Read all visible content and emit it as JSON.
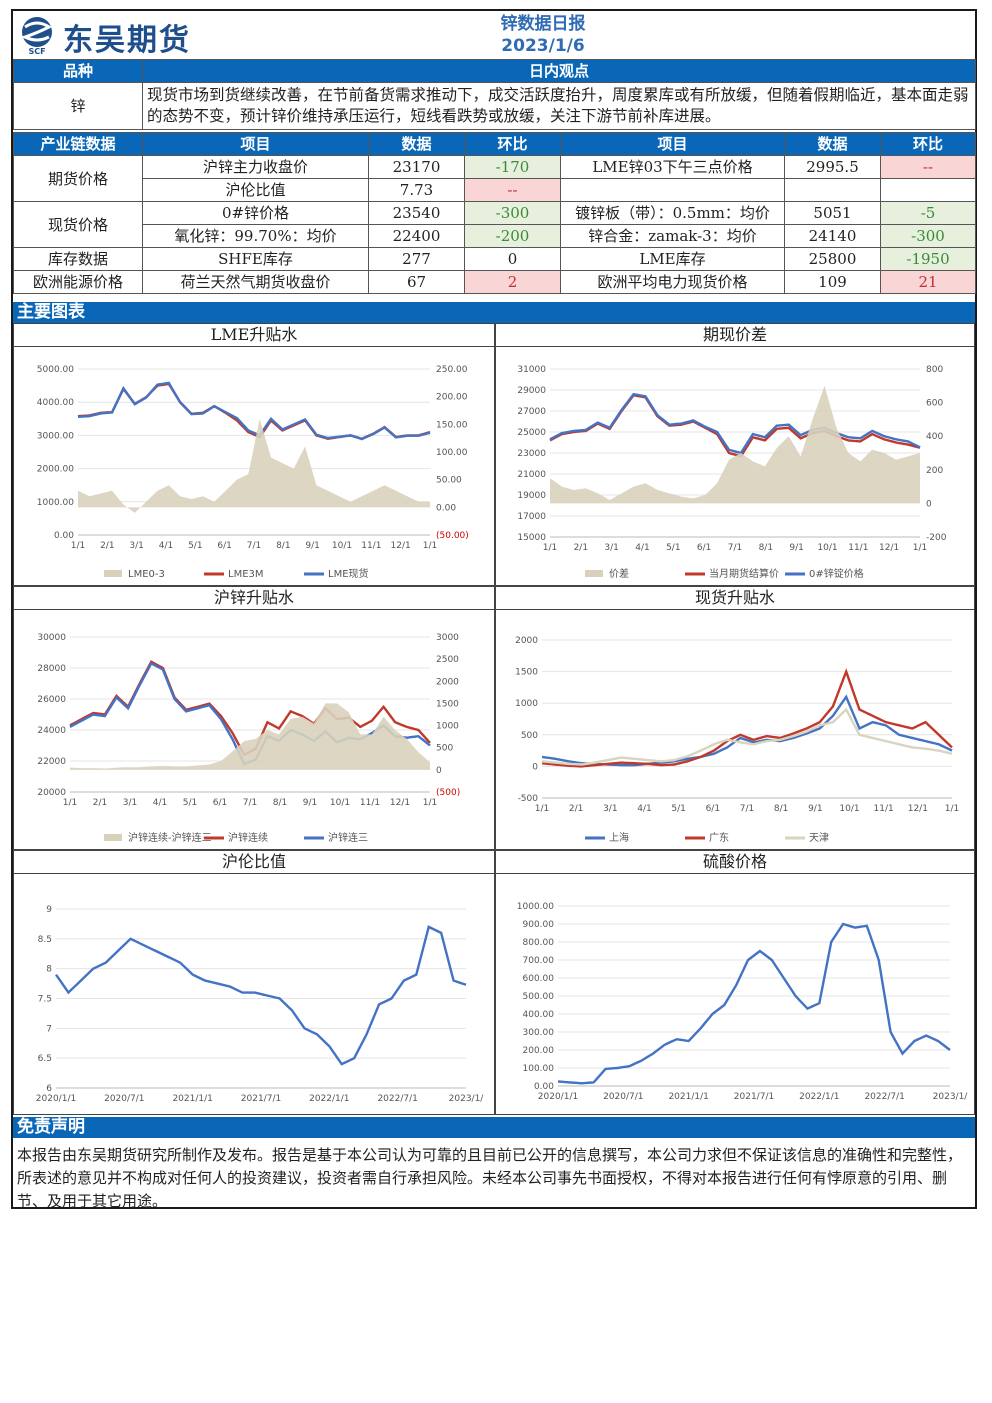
{
  "header": {
    "brand": "东吴期货",
    "logo_text": "SCF",
    "report_title": "锌数据日报",
    "report_date": "2023/1/6"
  },
  "view_table": {
    "col_variety": "品种",
    "col_view": "日内观点",
    "variety": "锌",
    "view": "现货市场到货继续改善，在节前备货需求推动下，成交活跃度抬升，周度累库或有所放缓，但随着假期临近，基本面走弱的态势不变，预计锌价维持承压运行，短线看跌势或放缓，关注下游节前补库进展。"
  },
  "data_table": {
    "headers": [
      "产业链数据",
      "项目",
      "数据",
      "环比",
      "项目",
      "数据",
      "环比"
    ],
    "groups": [
      {
        "label": "期货价格",
        "rows": [
          {
            "item1": "沪锌主力收盘价",
            "val1": "23170",
            "chg1": "-170",
            "c1": "g",
            "item2": "LME锌03下午三点价格",
            "val2": "2995.5",
            "chg2": "--",
            "c2": "r"
          },
          {
            "item1": "沪伦比值",
            "val1": "7.73",
            "chg1": "--",
            "c1": "r",
            "item2": "",
            "val2": "",
            "chg2": "",
            "c2": ""
          }
        ]
      },
      {
        "label": "现货价格",
        "rows": [
          {
            "item1": "0#锌价格",
            "val1": "23540",
            "chg1": "-300",
            "c1": "g",
            "item2": "镀锌板（带）：0.5mm：均价",
            "val2": "5051",
            "chg2": "-5",
            "c2": "g"
          },
          {
            "item1": "氧化锌：99.70%：均价",
            "val1": "22400",
            "chg1": "-200",
            "c1": "g",
            "item2": "锌合金：zamak-3：均价",
            "val2": "24140",
            "chg2": "-300",
            "c2": "g"
          }
        ]
      },
      {
        "label": "库存数据",
        "rows": [
          {
            "item1": "SHFE库存",
            "val1": "277",
            "chg1": "0",
            "c1": "",
            "item2": "LME库存",
            "val2": "25800",
            "chg2": "-1950",
            "c2": "g"
          }
        ]
      },
      {
        "label": "欧洲能源价格",
        "rows": [
          {
            "item1": "荷兰天然气期货收盘价",
            "val1": "67",
            "chg1": "2",
            "c1": "r",
            "item2": "欧洲平均电力现货价格",
            "val2": "109",
            "chg2": "21",
            "c2": "r"
          }
        ]
      }
    ]
  },
  "sections": {
    "charts_title": "主要图表",
    "disclaimer_title": "免责声明",
    "disclaimer_text": "本报告由东吴期货研究所制作及发布。报告是基于本公司认为可靠的且目前已公开的信息撰写，本公司力求但不保证该信息的准确性和完整性，所表述的意见并不构成对任何人的投资建议，投资者需自行承担风险。未经本公司事先书面授权，不得对本报告进行任何有悖原意的引用、删节、及用于其它用途。"
  },
  "colors": {
    "blue": "#4472c4",
    "red": "#c0392b",
    "tan": "#d8d2bd",
    "gray": "#c8c8b4"
  },
  "chart_data": [
    {
      "title": "LME升贴水",
      "type": "line",
      "x_ticks": [
        "1/1",
        "2/1",
        "3/1",
        "4/1",
        "5/1",
        "6/1",
        "7/1",
        "8/1",
        "9/1",
        "10/1",
        "11/1",
        "12/1",
        "1/1"
      ],
      "y_left": {
        "ticks": [
          "5000.00",
          "4000.00",
          "3000.00",
          "2000.00",
          "1000.00",
          "0.00"
        ],
        "range": [
          0,
          5000
        ]
      },
      "y_right": {
        "ticks": [
          "250.00",
          "200.00",
          "150.00",
          "100.00",
          "50.00",
          "0.00",
          "(50.00)"
        ],
        "range": [
          -50,
          250
        ]
      },
      "legend": [
        "LME0-3",
        "LME3M",
        "LME现货"
      ],
      "series": [
        {
          "name": "LME3M",
          "values": [
            3580,
            3600,
            3680,
            3700,
            4400,
            3950,
            4150,
            4500,
            4550,
            4000,
            3650,
            3680,
            3880,
            3680,
            3450,
            3100,
            2950,
            3450,
            3150,
            3300,
            3450,
            3000,
            2900,
            2950,
            3000,
            2900,
            3050,
            3250,
            2950,
            3000,
            3000,
            3100
          ]
        },
        {
          "name": "LME现货",
          "values": [
            3560,
            3580,
            3660,
            3690,
            4420,
            3940,
            4140,
            4530,
            4580,
            3990,
            3640,
            3660,
            3880,
            3700,
            3520,
            3150,
            3000,
            3500,
            3180,
            3330,
            3480,
            3020,
            2920,
            2960,
            3000,
            2890,
            3040,
            3240,
            2940,
            2990,
            2990,
            3080
          ]
        },
        {
          "name": "LME0-3",
          "values": [
            30,
            20,
            25,
            30,
            5,
            -10,
            10,
            30,
            40,
            20,
            15,
            20,
            10,
            30,
            50,
            60,
            160,
            90,
            80,
            70,
            110,
            40,
            30,
            20,
            10,
            20,
            30,
            40,
            30,
            20,
            10,
            10
          ]
        }
      ]
    },
    {
      "title": "期现价差",
      "type": "line",
      "x_ticks": [
        "1/1",
        "2/1",
        "3/1",
        "4/1",
        "5/1",
        "6/1",
        "7/1",
        "8/1",
        "9/1",
        "10/1",
        "11/1",
        "12/1",
        "1/1"
      ],
      "y_left": {
        "ticks": [
          "31000",
          "29000",
          "27000",
          "25000",
          "23000",
          "21000",
          "19000",
          "17000",
          "15000"
        ],
        "range": [
          15000,
          31000
        ]
      },
      "y_right": {
        "ticks": [
          "800",
          "600",
          "400",
          "200",
          "0",
          "-200"
        ],
        "range": [
          -200,
          800
        ]
      },
      "legend": [
        "价差",
        "当月期货结算价",
        "0#锌锭价格"
      ],
      "series": [
        {
          "name": "当月期货结算价",
          "values": [
            24200,
            24800,
            25000,
            25100,
            25800,
            25300,
            27000,
            28500,
            28300,
            26500,
            25600,
            25700,
            26000,
            25400,
            24800,
            23000,
            22700,
            24500,
            24200,
            25300,
            25400,
            24400,
            24900,
            25100,
            24600,
            24200,
            24100,
            24800,
            24300,
            24000,
            23800,
            23500
          ]
        },
        {
          "name": "0#锌锭价格",
          "values": [
            24300,
            24900,
            25100,
            25200,
            25900,
            25400,
            27100,
            28600,
            28400,
            26600,
            25700,
            25800,
            26100,
            25500,
            25000,
            23300,
            23000,
            24800,
            24500,
            25600,
            25700,
            24700,
            25200,
            25400,
            24900,
            24500,
            24400,
            25100,
            24600,
            24300,
            24100,
            23540
          ]
        },
        {
          "name": "价差",
          "values": [
            150,
            100,
            80,
            90,
            60,
            20,
            60,
            100,
            120,
            80,
            60,
            40,
            30,
            50,
            120,
            260,
            300,
            250,
            220,
            330,
            400,
            280,
            500,
            700,
            450,
            300,
            250,
            320,
            300,
            260,
            280,
            300
          ]
        }
      ]
    },
    {
      "title": "沪锌升贴水",
      "type": "line",
      "x_ticks": [
        "1/1",
        "2/1",
        "3/1",
        "4/1",
        "5/1",
        "6/1",
        "7/1",
        "8/1",
        "9/1",
        "10/1",
        "11/1",
        "12/1",
        "1/1"
      ],
      "y_left": {
        "ticks": [
          "30000",
          "28000",
          "26000",
          "24000",
          "22000",
          "20000"
        ],
        "range": [
          20000,
          30000
        ]
      },
      "y_right": {
        "ticks": [
          "3000",
          "2500",
          "2000",
          "1500",
          "1000",
          "500",
          "0",
          "(500)"
        ],
        "range": [
          -500,
          3000
        ]
      },
      "legend": [
        "沪锌连续-沪锌连三",
        "沪锌连续",
        "沪锌连三"
      ],
      "series": [
        {
          "name": "沪锌连续",
          "values": [
            24300,
            24700,
            25100,
            25000,
            26200,
            25500,
            27000,
            28400,
            28000,
            26100,
            25300,
            25500,
            25700,
            24900,
            23800,
            22400,
            22800,
            24500,
            24100,
            25200,
            24900,
            24400,
            25400,
            24700,
            24800,
            24200,
            24600,
            25500,
            24500,
            24200,
            24000,
            23170
          ]
        },
        {
          "name": "沪锌连三",
          "values": [
            24200,
            24600,
            25000,
            24900,
            26100,
            25400,
            26900,
            28300,
            27900,
            26000,
            25200,
            25400,
            25600,
            24700,
            23400,
            21800,
            22100,
            23600,
            23300,
            24000,
            23700,
            23300,
            23900,
            23200,
            23500,
            23400,
            23800,
            24300,
            23600,
            23500,
            23600,
            23000
          ]
        },
        {
          "name": "沪锌连续-沪锌连三",
          "values": [
            50,
            40,
            40,
            30,
            50,
            60,
            60,
            80,
            90,
            80,
            80,
            100,
            120,
            200,
            420,
            650,
            700,
            900,
            800,
            1150,
            1200,
            1050,
            1500,
            1500,
            1300,
            800,
            800,
            1200,
            900,
            700,
            400,
            170
          ]
        }
      ]
    },
    {
      "title": "现货升贴水",
      "type": "line",
      "x_ticks": [
        "1/1",
        "2/1",
        "3/1",
        "4/1",
        "5/1",
        "6/1",
        "7/1",
        "8/1",
        "9/1",
        "10/1",
        "11/1",
        "12/1",
        "1/1"
      ],
      "y_left": {
        "ticks": [
          "2000",
          "1500",
          "1000",
          "500",
          "0",
          "-500"
        ],
        "range": [
          -500,
          2000
        ]
      },
      "legend": [
        "上海",
        "广东",
        "天津"
      ],
      "series": [
        {
          "name": "上海",
          "values": [
            150,
            120,
            80,
            50,
            40,
            30,
            20,
            20,
            40,
            60,
            80,
            120,
            150,
            200,
            300,
            450,
            380,
            420,
            400,
            450,
            520,
            600,
            800,
            1100,
            600,
            700,
            650,
            500,
            450,
            400,
            350,
            250
          ]
        },
        {
          "name": "广东",
          "values": [
            50,
            30,
            10,
            0,
            20,
            40,
            60,
            50,
            40,
            20,
            30,
            80,
            150,
            250,
            400,
            500,
            420,
            480,
            450,
            520,
            600,
            700,
            950,
            1500,
            900,
            800,
            700,
            650,
            600,
            700,
            500,
            300
          ]
        },
        {
          "name": "天津",
          "values": [
            80,
            60,
            40,
            30,
            60,
            100,
            140,
            120,
            100,
            80,
            100,
            160,
            250,
            350,
            420,
            380,
            350,
            400,
            420,
            480,
            550,
            650,
            700,
            900,
            500,
            450,
            400,
            350,
            300,
            280,
            250,
            200
          ]
        }
      ]
    },
    {
      "title": "沪伦比值",
      "type": "line",
      "x_ticks": [
        "2020/1/1",
        "2020/7/1",
        "2021/1/1",
        "2021/7/1",
        "2022/1/1",
        "2022/7/1",
        "2023/1/"
      ],
      "y_left": {
        "ticks": [
          "9",
          "8.5",
          "8",
          "7.5",
          "7",
          "6.5",
          "6"
        ],
        "range": [
          6,
          9
        ]
      },
      "series": [
        {
          "name": "沪伦比值",
          "values": [
            7.9,
            7.6,
            7.8,
            8.0,
            8.1,
            8.3,
            8.5,
            8.4,
            8.3,
            8.2,
            8.1,
            7.9,
            7.8,
            7.75,
            7.7,
            7.6,
            7.6,
            7.55,
            7.5,
            7.3,
            7.0,
            6.9,
            6.7,
            6.4,
            6.5,
            6.9,
            7.4,
            7.5,
            7.8,
            7.9,
            8.7,
            8.6,
            7.8,
            7.73
          ]
        }
      ]
    },
    {
      "title": "硫酸价格",
      "type": "line",
      "x_ticks": [
        "2020/1/1",
        "2020/7/1",
        "2021/1/1",
        "2021/7/1",
        "2022/1/1",
        "2022/7/1",
        "2023/1/"
      ],
      "y_left": {
        "ticks": [
          "1000.00",
          "900.00",
          "800.00",
          "700.00",
          "600.00",
          "500.00",
          "400.00",
          "300.00",
          "200.00",
          "100.00",
          "0.00"
        ],
        "range": [
          0,
          1000
        ]
      },
      "series": [
        {
          "name": "硫酸价格",
          "values": [
            25,
            20,
            15,
            20,
            95,
            100,
            110,
            140,
            180,
            230,
            260,
            250,
            320,
            400,
            450,
            560,
            700,
            750,
            700,
            600,
            500,
            430,
            460,
            800,
            900,
            880,
            890,
            700,
            300,
            180,
            250,
            280,
            250,
            200
          ]
        }
      ]
    }
  ]
}
